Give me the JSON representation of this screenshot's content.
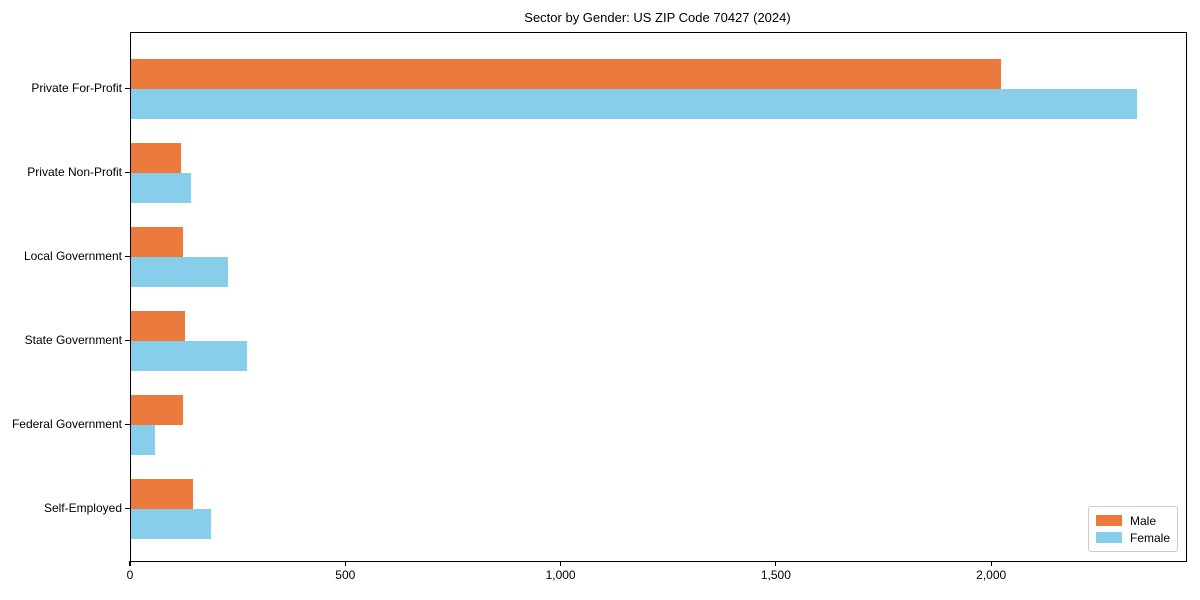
{
  "chart_data": {
    "type": "bar",
    "orientation": "horizontal",
    "title": "Sector by Gender: US ZIP Code 70427 (2024)",
    "categories": [
      "Private For-Profit",
      "Private Non-Profit",
      "Local Government",
      "State Government",
      "Federal Government",
      "Self-Employed"
    ],
    "series": [
      {
        "name": "Male",
        "color": "#EB7A3C",
        "values": [
          2020,
          115,
          120,
          125,
          120,
          145
        ]
      },
      {
        "name": "Female",
        "color": "#87CEEB",
        "values": [
          2335,
          140,
          225,
          270,
          55,
          185
        ]
      }
    ],
    "xlabel": "",
    "ylabel": "",
    "xlim": [
      0,
      2450
    ],
    "xticks": [
      0,
      500,
      1000,
      1500,
      2000
    ],
    "xtick_labels": [
      "0",
      "500",
      "1,000",
      "1,500",
      "2,000"
    ],
    "legend_position": "lower right",
    "grid": false,
    "background": "#ffffff",
    "text_color": "#000000"
  }
}
